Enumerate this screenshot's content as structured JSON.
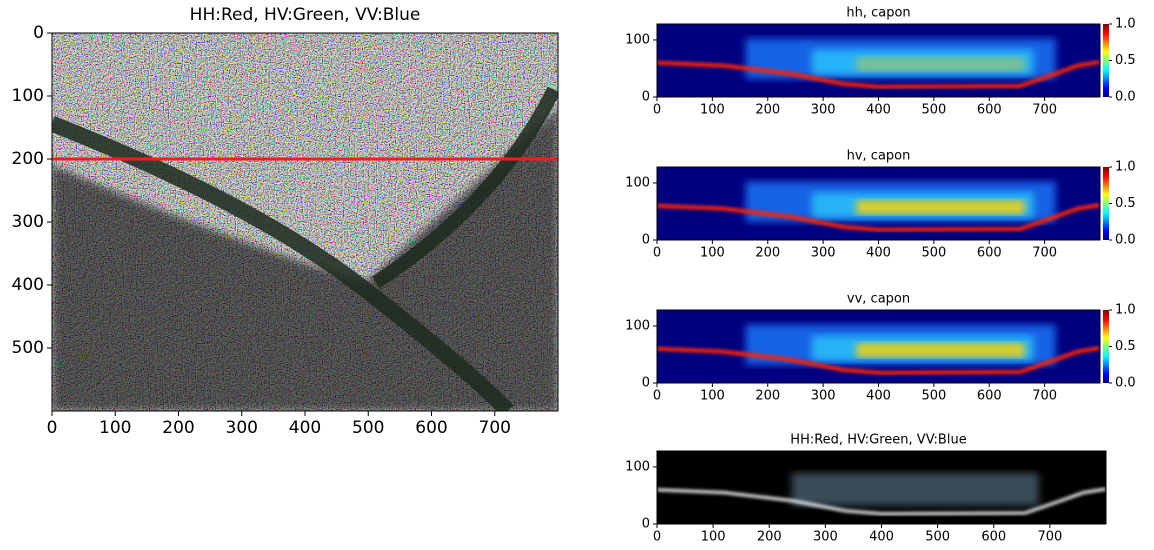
{
  "chart_data": [
    {
      "type": "image",
      "title": "HH:Red, HV:Green, VV:Blue",
      "xlim": [
        0,
        800
      ],
      "ylim": [
        600,
        0
      ],
      "xticks": [
        0,
        100,
        200,
        300,
        400,
        500,
        600,
        700
      ],
      "yticks": [
        0,
        100,
        200,
        300,
        400,
        500
      ],
      "hline": 200,
      "hline_color": "#ff1a1a"
    },
    {
      "type": "image",
      "title": "hh, capon",
      "xlim": [
        0,
        800
      ],
      "ylim": [
        0,
        128
      ],
      "xticks": [
        0,
        100,
        200,
        300,
        400,
        500,
        600,
        700
      ],
      "yticks": [
        0,
        100
      ],
      "colorbar": {
        "lim": [
          0,
          1
        ],
        "ticks": [
          {
            "value": 0,
            "label": "0.0"
          },
          {
            "value": 0.5,
            "label": "0.5"
          },
          {
            "value": 1,
            "label": "1.0"
          }
        ]
      }
    },
    {
      "type": "image",
      "title": "hv, capon",
      "xlim": [
        0,
        800
      ],
      "ylim": [
        0,
        128
      ],
      "xticks": [
        0,
        100,
        200,
        300,
        400,
        500,
        600,
        700
      ],
      "yticks": [
        0,
        100
      ],
      "colorbar": {
        "lim": [
          0,
          1
        ],
        "ticks": [
          {
            "value": 0,
            "label": "0.0"
          },
          {
            "value": 0.5,
            "label": "0.5"
          },
          {
            "value": 1,
            "label": "1.0"
          }
        ]
      }
    },
    {
      "type": "image",
      "title": "vv, capon",
      "xlim": [
        0,
        800
      ],
      "ylim": [
        0,
        128
      ],
      "xticks": [
        0,
        100,
        200,
        300,
        400,
        500,
        600,
        700
      ],
      "yticks": [
        0,
        100
      ],
      "colorbar": {
        "lim": [
          0,
          1
        ],
        "ticks": [
          {
            "value": 0,
            "label": "0.0"
          },
          {
            "value": 0.5,
            "label": "0.5"
          },
          {
            "value": 1,
            "label": "1.0"
          }
        ]
      }
    },
    {
      "type": "image",
      "title": "HH:Red, HV:Green, VV:Blue",
      "xlim": [
        0,
        800
      ],
      "ylim": [
        0,
        128
      ],
      "xticks": [
        0,
        100,
        200,
        300,
        400,
        500,
        600,
        700
      ],
      "yticks": [
        0,
        100
      ]
    }
  ]
}
